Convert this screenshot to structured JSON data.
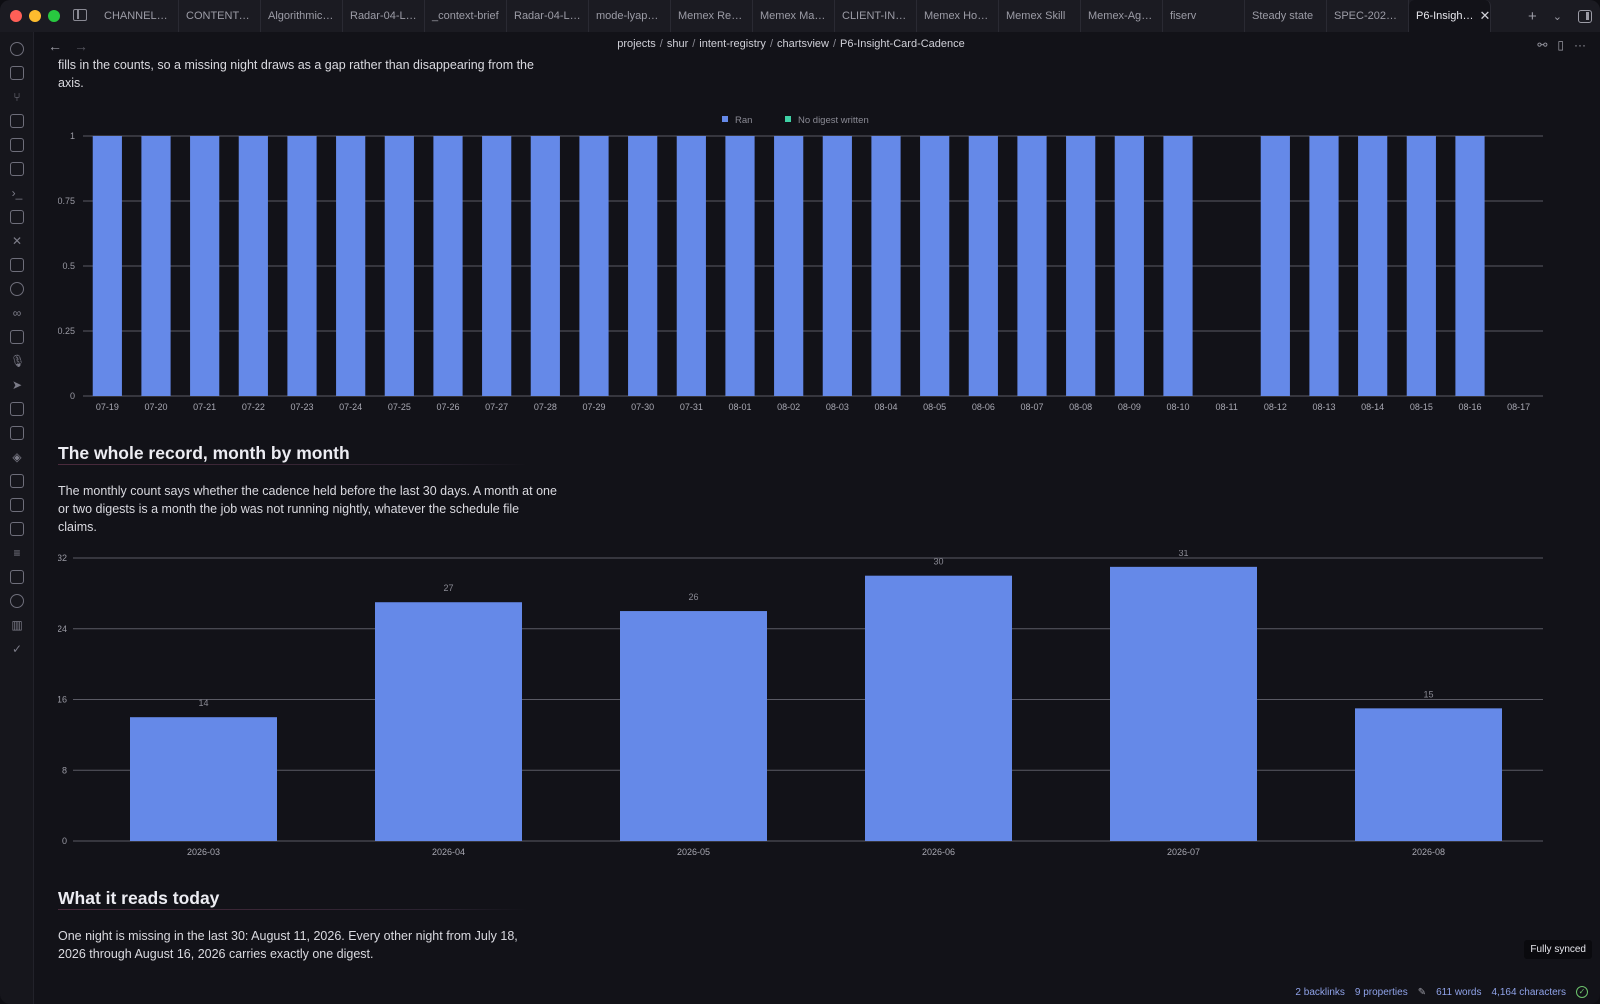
{
  "tabs": [
    {
      "label": "CHANNEL-IN…"
    },
    {
      "label": "CONTENT-M…"
    },
    {
      "label": "Algorithmic D…"
    },
    {
      "label": "Radar-04-Liv…"
    },
    {
      "label": "_context-brief"
    },
    {
      "label": "Radar-04-Liv…"
    },
    {
      "label": "mode-lyapunov"
    },
    {
      "label": "Memex Resp…"
    },
    {
      "label": "Memex Manu…"
    },
    {
      "label": "CLIENT-INTA…"
    },
    {
      "label": "Memex Host…"
    },
    {
      "label": "Memex Skill"
    },
    {
      "label": "Memex-Agen…"
    },
    {
      "label": "fiserv"
    },
    {
      "label": "Steady state"
    },
    {
      "label": "SPEC-2026-…"
    }
  ],
  "active_tab": "P6-Insigh…",
  "breadcrumb": [
    "projects",
    "shur",
    "intent-registry",
    "chartsview",
    "P6-Insight-Card-Cadence"
  ],
  "intro_text": "fills in the counts, so a missing night draws as a gap rather than disappearing from the axis.",
  "section_monthly": {
    "heading": "The whole record, month by month",
    "text": "The monthly count says whether the cadence held before the last 30 days. A month at one or two digests is a month the job was not running nightly, whatever the schedule file claims."
  },
  "section_today": {
    "heading": "What it reads today",
    "text": "One night is missing in the last 30: August 11, 2026. Every other night from July 18, 2026 through August 16, 2026 carries exactly one digest."
  },
  "status": {
    "backlinks": "2 backlinks",
    "properties": "9 properties",
    "words": "611 words",
    "characters": "4,164 characters",
    "sync": "Fully synced"
  },
  "colors": {
    "bar": "#6589e8",
    "legend_missing": "#3fd1a5",
    "grid": "#5a5a64"
  },
  "chart_data": [
    {
      "type": "bar",
      "legend": [
        "Ran",
        "No digest written"
      ],
      "legend_position": "top-center",
      "categories": [
        "07-19",
        "07-20",
        "07-21",
        "07-22",
        "07-23",
        "07-24",
        "07-25",
        "07-26",
        "07-27",
        "07-28",
        "07-29",
        "07-30",
        "07-31",
        "08-01",
        "08-02",
        "08-03",
        "08-04",
        "08-05",
        "08-06",
        "08-07",
        "08-08",
        "08-09",
        "08-10",
        "08-11",
        "08-12",
        "08-13",
        "08-14",
        "08-15",
        "08-16",
        "08-17"
      ],
      "series": [
        {
          "name": "Ran",
          "values": [
            1,
            1,
            1,
            1,
            1,
            1,
            1,
            1,
            1,
            1,
            1,
            1,
            1,
            1,
            1,
            1,
            1,
            1,
            1,
            1,
            1,
            1,
            1,
            0,
            1,
            1,
            1,
            1,
            1,
            0
          ]
        },
        {
          "name": "No digest written",
          "values": [
            0,
            0,
            0,
            0,
            0,
            0,
            0,
            0,
            0,
            0,
            0,
            0,
            0,
            0,
            0,
            0,
            0,
            0,
            0,
            0,
            0,
            0,
            0,
            0,
            0,
            0,
            0,
            0,
            0,
            0
          ]
        }
      ],
      "yticks": [
        "0",
        "0.25",
        "0.5",
        "0.75",
        "1"
      ],
      "ylim": [
        0,
        1
      ],
      "grid": true
    },
    {
      "type": "bar",
      "categories": [
        "2026-03",
        "2026-04",
        "2026-05",
        "2026-06",
        "2026-07",
        "2026-08"
      ],
      "values": [
        14,
        27,
        26,
        30,
        31,
        15
      ],
      "yticks": [
        "0",
        "8",
        "16",
        "24",
        "32"
      ],
      "ylim": [
        0,
        32
      ],
      "data_labels": true,
      "grid": true
    }
  ]
}
